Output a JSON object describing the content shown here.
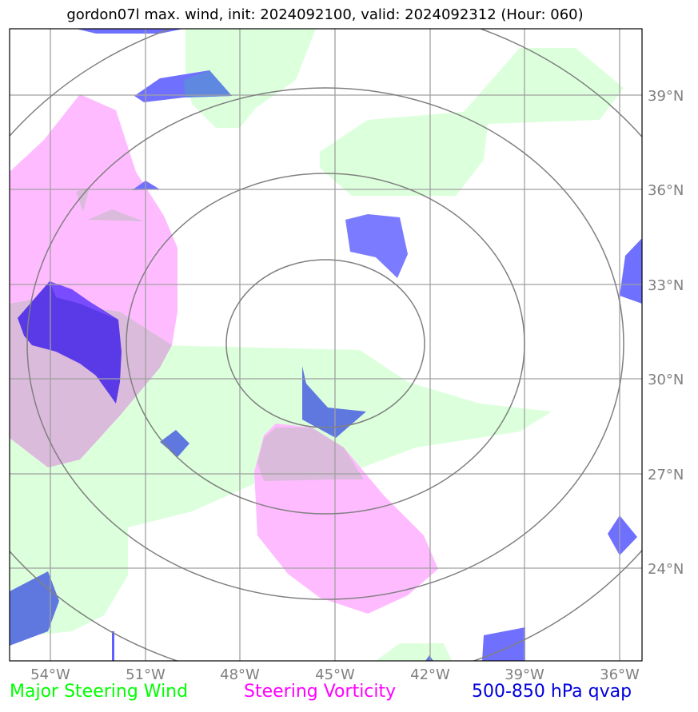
{
  "title": "gordon07l max. wind, init: 2024092100, valid: 2024092312 (Hour: 060)",
  "axes": {
    "lon_ticks": [
      "54°W",
      "51°W",
      "48°W",
      "45°W",
      "42°W",
      "39°W",
      "36°W"
    ],
    "lat_ticks": [
      "39°N",
      "36°N",
      "33°N",
      "30°N",
      "27°N",
      "24°N"
    ],
    "lon_range": [
      -55.3,
      -35.3
    ],
    "lat_range": [
      21,
      41
    ],
    "grid": true
  },
  "legend": {
    "wind": {
      "label": "Major Steering Wind",
      "color": "#00ff00"
    },
    "vorticity": {
      "label": "Steering Vorticity",
      "color": "#ff00ff"
    },
    "qvap": {
      "label": "500-850 hPa qvap",
      "color": "#0000dd"
    }
  },
  "colors": {
    "grid": "#a0a0a0",
    "rings": "#808080",
    "wind_fill": "#dcffdc",
    "vort_fill": "#ffbbff",
    "qvap_fill": "#7070ff",
    "overlap_fill": "#dbbbdb"
  }
}
